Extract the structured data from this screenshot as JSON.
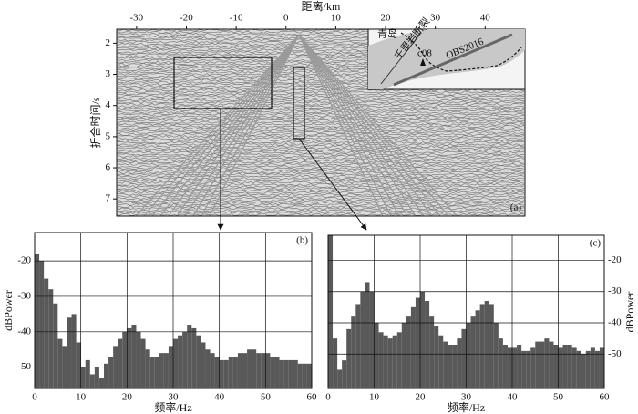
{
  "chart_data": [
    {
      "type": "image",
      "label": "(a)",
      "xlabel": "距离/km",
      "ylabel": "折合时间/s",
      "xlim": [
        -34,
        48
      ],
      "xticks": [
        -30,
        -20,
        -10,
        0,
        10,
        20,
        30,
        40
      ],
      "ylim": [
        1.55,
        7.55
      ],
      "yticks": [
        2,
        3,
        4,
        5,
        6,
        7
      ],
      "y_inverted": true,
      "inset_labels": [
        "青岛",
        "千里岩断裂",
        "OBS2016",
        "c08"
      ]
    },
    {
      "type": "histogram",
      "label": "(b)",
      "xlabel": "频率/Hz",
      "ylabel": "dBPower",
      "color": "#595959",
      "bins": [
        0,
        1,
        2,
        3,
        4,
        5,
        6,
        7,
        8,
        9,
        10,
        11,
        12,
        13,
        14,
        15,
        16,
        17,
        18,
        19,
        20,
        21,
        22,
        23,
        24,
        25,
        26,
        27,
        28,
        29,
        30,
        31,
        32,
        33,
        34,
        35,
        36,
        37,
        38,
        39,
        40,
        41,
        42,
        43,
        44,
        45,
        46,
        47,
        48,
        49,
        50,
        51,
        52,
        53,
        54,
        55,
        56,
        57,
        58,
        59,
        60
      ],
      "values": [
        -18,
        -20,
        -25,
        -28,
        -32,
        -42,
        -44,
        -36,
        -35,
        -43,
        -50,
        -48,
        -52,
        -50,
        -53,
        -49,
        -47,
        -44,
        -42,
        -40,
        -39,
        -38,
        -40,
        -42,
        -45,
        -47,
        -47,
        -46,
        -46,
        -44,
        -42,
        -41,
        -40,
        -38,
        -39,
        -41,
        -43,
        -45,
        -46,
        -47,
        -48,
        -48,
        -47,
        -47,
        -46,
        -46,
        -45,
        -45,
        -46,
        -46,
        -46,
        -47,
        -47,
        -48,
        -48,
        -48,
        -48,
        -49,
        -49,
        -49
      ],
      "xlim": [
        0,
        60
      ],
      "xticks": [
        0,
        10,
        20,
        30,
        40,
        50,
        60
      ],
      "ylim": [
        -56,
        -12
      ],
      "yticks": [
        -20,
        -30,
        -40,
        -50
      ],
      "grid": true,
      "yaxis_side": "left"
    },
    {
      "type": "histogram",
      "label": "(c)",
      "xlabel": "频率/Hz",
      "ylabel": "dBPower",
      "color": "#595959",
      "bins": [
        0,
        1,
        2,
        3,
        4,
        5,
        6,
        7,
        8,
        9,
        10,
        11,
        12,
        13,
        14,
        15,
        16,
        17,
        18,
        19,
        20,
        21,
        22,
        23,
        24,
        25,
        26,
        27,
        28,
        29,
        30,
        31,
        32,
        33,
        34,
        35,
        36,
        37,
        38,
        39,
        40,
        41,
        42,
        43,
        44,
        45,
        46,
        47,
        48,
        49,
        50,
        51,
        52,
        53,
        54,
        55,
        56,
        57,
        58,
        59,
        60
      ],
      "values": [
        -12,
        -45,
        -55,
        -52,
        -42,
        -38,
        -34,
        -30,
        -27,
        -30,
        -40,
        -43,
        -44,
        -45,
        -44,
        -43,
        -40,
        -38,
        -35,
        -32,
        -30,
        -33,
        -38,
        -41,
        -44,
        -46,
        -47,
        -47,
        -45,
        -42,
        -40,
        -38,
        -36,
        -34,
        -33,
        -34,
        -40,
        -45,
        -47,
        -48,
        -48,
        -47,
        -49,
        -49,
        -48,
        -46,
        -46,
        -45,
        -46,
        -47,
        -48,
        -47,
        -47,
        -48,
        -49,
        -50,
        -49,
        -48,
        -49,
        -48
      ],
      "xlim": [
        0,
        60
      ],
      "xticks": [
        0,
        10,
        20,
        30,
        40,
        50,
        60
      ],
      "ylim": [
        -61,
        -12
      ],
      "yticks": [
        -20,
        -30,
        -40,
        -50
      ],
      "grid": true,
      "yaxis_side": "right"
    }
  ]
}
